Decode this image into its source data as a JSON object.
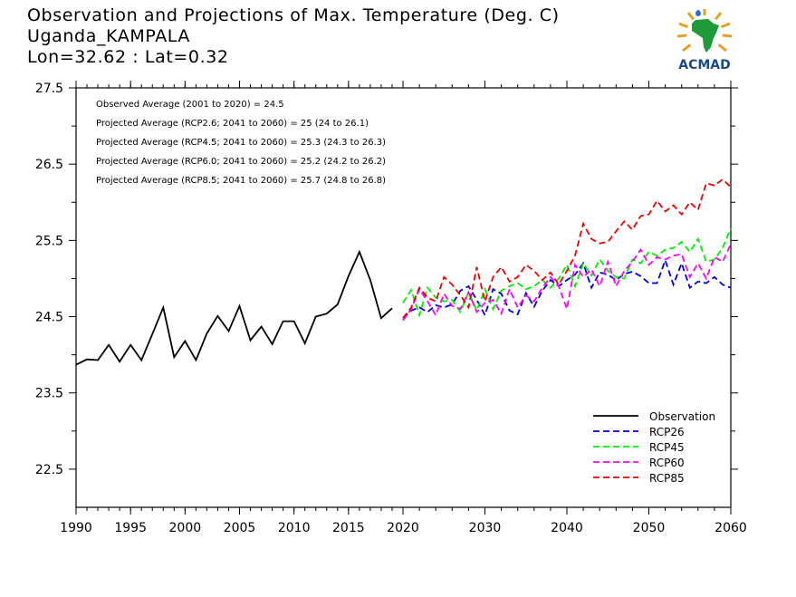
{
  "title": {
    "line1": "Observation and Projections of Max. Temperature (Deg. C)",
    "line2": "Uganda_KAMPALA",
    "line3": "Lon=32.62 : Lat=0.32"
  },
  "logo": {
    "text": "ACMAD",
    "icon": "africa-map-logo-icon"
  },
  "annotations": [
    "Observed Average (2001 to 2020) = 24.5",
    "Projected Average (RCP2.6; 2041 to 2060) = 25 (24 to 26.1)",
    "Projected Average (RCP4.5; 2041 to 2060) = 25.3 (24.3 to 26.3)",
    "Projected Average (RCP6.0; 2041 to 2060) = 25.2 (24.2 to 26.2)",
    "Projected Average (RCP8.5; 2041 to 2060) = 25.7 (24.8 to 26.8)"
  ],
  "chart_data": {
    "type": "line",
    "xlim": [
      1990,
      2060
    ],
    "ylim": [
      22.0,
      27.5
    ],
    "x_ticks": [
      "1990",
      "1995",
      "2000",
      "2005",
      "2010",
      "2015",
      "2020",
      "2030",
      "2040",
      "2050",
      "2060"
    ],
    "y_ticks": [
      "22.5",
      "23.5",
      "24.5",
      "25.5",
      "26.5",
      "27.5"
    ],
    "legend_position": "bottom-right",
    "series": [
      {
        "name": "Observation",
        "color": "#000000",
        "dash": "solid",
        "x0": 1990,
        "values": [
          23.87,
          23.94,
          23.93,
          24.13,
          23.91,
          24.13,
          23.93,
          24.27,
          24.62,
          23.97,
          24.18,
          23.93,
          24.28,
          24.51,
          24.31,
          24.64,
          24.19,
          24.37,
          24.14,
          24.44,
          24.44,
          24.15,
          24.5,
          24.54,
          24.66,
          25.03,
          25.35,
          24.98,
          24.48,
          24.61
        ]
      },
      {
        "name": "RCP26",
        "color": "#0000dd",
        "dash": "dashed",
        "x0": 2020,
        "values": [
          24.48,
          24.58,
          24.62,
          24.56,
          24.65,
          24.62,
          24.66,
          24.84,
          24.9,
          24.72,
          24.52,
          24.86,
          24.8,
          24.58,
          24.53,
          24.81,
          24.63,
          24.84,
          24.98,
          24.9,
          24.98,
          25.05,
          25.2,
          24.88,
          25.08,
          25.05,
          24.98,
          25.06,
          25.09,
          25.03,
          24.94,
          24.94,
          25.24,
          24.92,
          25.2,
          24.88,
          24.96,
          24.94,
          25.02,
          24.92,
          24.88
        ]
      },
      {
        "name": "RCP45",
        "color": "#00ee00",
        "dash": "dashed",
        "x0": 2020,
        "values": [
          24.68,
          24.85,
          24.52,
          24.88,
          24.75,
          24.7,
          24.72,
          24.56,
          24.82,
          24.58,
          24.86,
          24.6,
          24.84,
          24.9,
          24.94,
          24.86,
          24.9,
          24.98,
          24.88,
          25.0,
          25.18,
          24.9,
          25.2,
          25.04,
          25.25,
          25.1,
          25.02,
          25.0,
          25.25,
          25.2,
          25.35,
          25.3,
          25.38,
          25.4,
          25.48,
          25.35,
          25.52,
          25.22,
          25.25,
          25.4,
          25.66
        ]
      },
      {
        "name": "RCP60",
        "color": "#ff00ff",
        "dash": "dashed",
        "x0": 2020,
        "values": [
          24.45,
          24.6,
          24.86,
          24.7,
          24.52,
          24.8,
          24.64,
          24.6,
          24.82,
          24.56,
          24.68,
          24.72,
          24.54,
          24.86,
          24.62,
          24.78,
          24.7,
          24.88,
          25.02,
          24.9,
          24.6,
          25.18,
          25.02,
          25.12,
          24.9,
          25.22,
          24.9,
          25.1,
          25.22,
          25.38,
          25.18,
          25.28,
          25.25,
          25.3,
          25.32,
          25.02,
          25.2,
          25.0,
          25.28,
          25.22,
          25.45
        ]
      },
      {
        "name": "RCP85",
        "color": "#ee0000",
        "dash": "dashed",
        "x0": 2020,
        "values": [
          24.48,
          24.62,
          24.88,
          24.75,
          24.7,
          25.02,
          24.92,
          24.78,
          24.62,
          25.15,
          24.7,
          25.02,
          25.15,
          24.96,
          25.02,
          25.18,
          25.1,
          24.98,
          25.08,
          24.92,
          25.1,
          25.3,
          25.72,
          25.52,
          25.46,
          25.48,
          25.62,
          25.75,
          25.64,
          25.82,
          25.84,
          26.02,
          25.88,
          25.96,
          25.84,
          26.0,
          25.9,
          26.25,
          26.22,
          26.3,
          26.2
        ]
      }
    ]
  }
}
